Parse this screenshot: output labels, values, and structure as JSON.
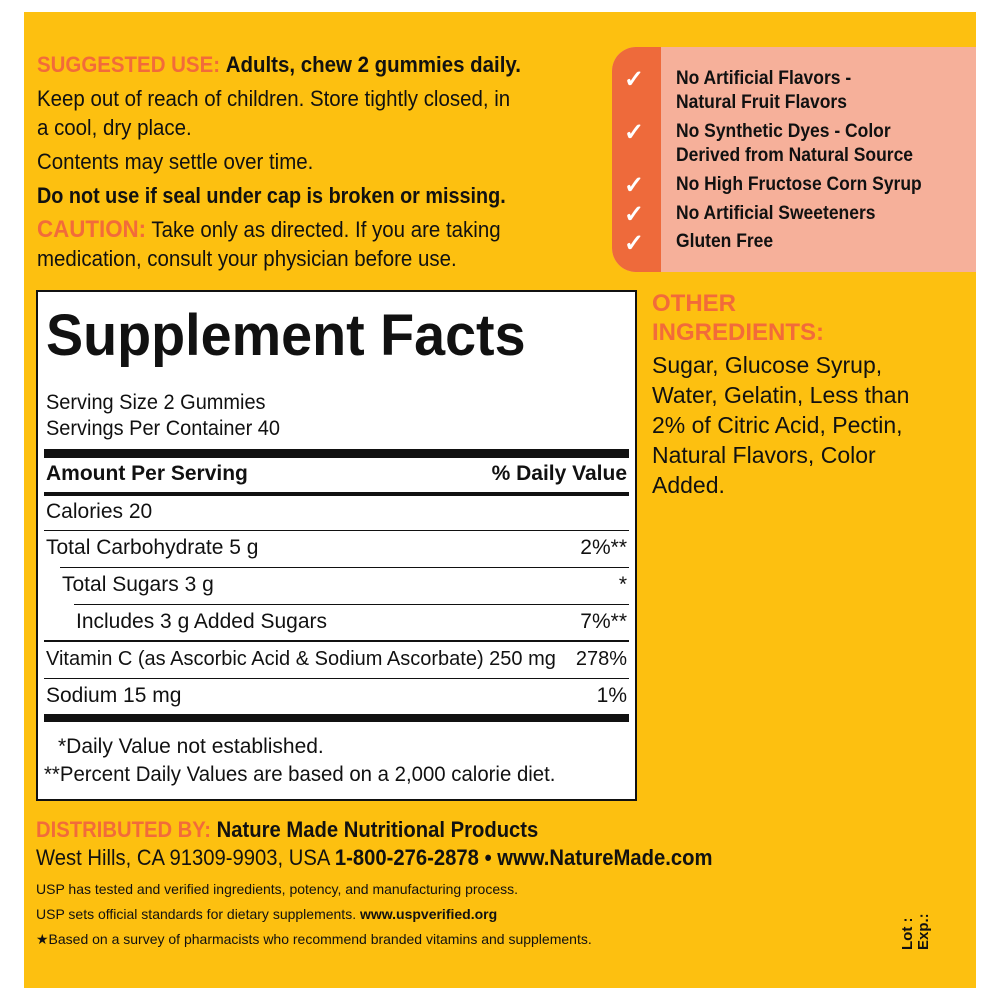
{
  "suggested_use": {
    "label": "SUGGESTED USE:",
    "bold": "Adults, chew 2 gummies daily.",
    "lines": [
      "Keep out of reach of children. Store tightly closed, in",
      "a cool, dry place.",
      "Contents may settle over time."
    ],
    "warning": "Do not use if seal under cap is broken or missing."
  },
  "caution": {
    "label": "CAUTION:",
    "line1": "Take only as directed. If you are taking",
    "line2": "medication, consult your physician before use."
  },
  "claims": {
    "items": [
      "No Artificial Flavors -",
      "Natural Fruit Flavors",
      "No Synthetic Dyes - Color",
      "Derived from Natural Source",
      "No High Fructose Corn Syrup",
      "No Artificial Sweeteners",
      "Gluten Free"
    ],
    "check": "✓"
  },
  "facts": {
    "title": "Supplement Facts",
    "serving_size": "Serving Size 2 Gummies",
    "servings": "Servings Per Container 40",
    "header_left": "Amount Per Serving",
    "header_right": "% Daily Value",
    "rows": [
      {
        "name": "Calories 20",
        "dv": ""
      },
      {
        "name": "Total Carbohydrate 5 g",
        "dv": "2%**"
      },
      {
        "name": "Total Sugars 3 g",
        "dv": "*"
      },
      {
        "name": "Includes 3 g Added Sugars",
        "dv": "7%**"
      },
      {
        "name": "Vitamin C (as Ascorbic Acid & Sodium Ascorbate) 250 mg",
        "dv": "278%"
      },
      {
        "name": "Sodium 15 mg",
        "dv": "1%"
      }
    ],
    "footnote1": "*Daily Value not established.",
    "footnote2": "**Percent Daily Values are based on a 2,000 calorie diet."
  },
  "other": {
    "label1": "OTHER",
    "label2": "INGREDIENTS:",
    "lines": [
      "Sugar, Glucose Syrup,",
      "Water, Gelatin, Less than",
      "2% of Citric Acid, Pectin,",
      "Natural Flavors, Color",
      "Added."
    ]
  },
  "distributed": {
    "label": "DISTRIBUTED BY:",
    "company": "Nature Made Nutritional Products",
    "address": "West Hills, CA 91309-9903, USA",
    "phone": "1-800-276-2878",
    "web": "• www.NatureMade.com"
  },
  "usp": {
    "line1": "USP has tested and verified ingredients, potency, and manufacturing process.",
    "line2a": "USP sets official standards for dietary supplements.",
    "line2b": "www.uspverified.org",
    "line3": "★Based on a survey of pharmacists who recommend branded vitamins and supplements."
  },
  "lot": "Lot :",
  "exp": "Exp.:",
  "colors": {
    "background": "#FDC010",
    "accent": "#F26B3A",
    "panel": "#F6B09A"
  }
}
